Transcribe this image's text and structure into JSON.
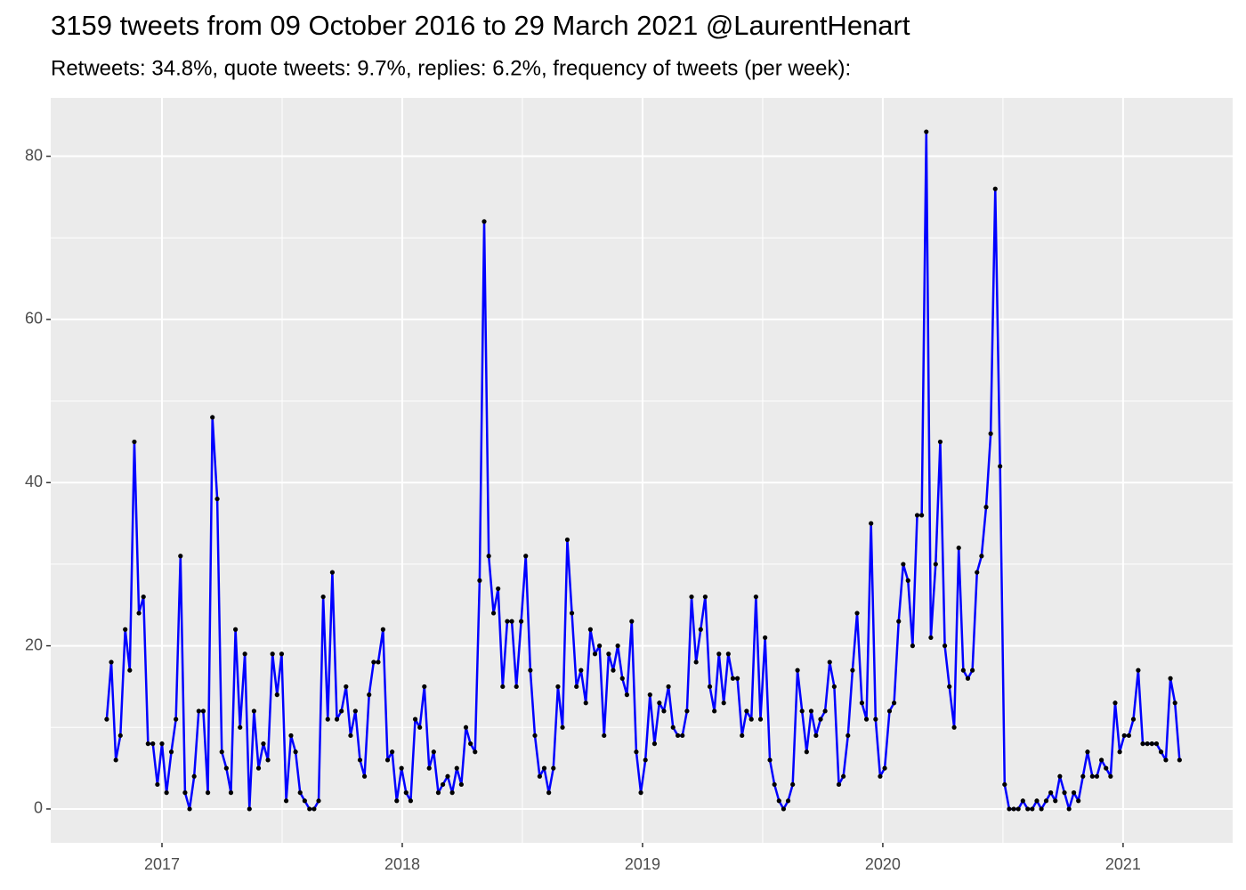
{
  "chart_data": {
    "type": "line",
    "title": "3159 tweets from 09 October 2016 to 29 March 2021 @LaurentHenart",
    "subtitle": "Retweets: 34.8%, quote tweets: 9.7%, replies: 6.2%, frequency of tweets (per week):",
    "x": [
      2016.77,
      2016.789,
      2016.808,
      2016.827,
      2016.847,
      2016.866,
      2016.885,
      2016.904,
      2016.923,
      2016.942,
      2016.962,
      2016.981,
      2017.0,
      2017.019,
      2017.039,
      2017.058,
      2017.077,
      2017.096,
      2017.115,
      2017.134,
      2017.153,
      2017.172,
      2017.191,
      2017.21,
      2017.23,
      2017.249,
      2017.268,
      2017.287,
      2017.306,
      2017.325,
      2017.345,
      2017.364,
      2017.383,
      2017.402,
      2017.422,
      2017.441,
      2017.46,
      2017.479,
      2017.498,
      2017.517,
      2017.537,
      2017.556,
      2017.575,
      2017.594,
      2017.614,
      2017.633,
      2017.652,
      2017.671,
      2017.69,
      2017.709,
      2017.728,
      2017.747,
      2017.766,
      2017.785,
      2017.805,
      2017.824,
      2017.843,
      2017.862,
      2017.881,
      2017.9,
      2017.92,
      2017.939,
      2017.958,
      2017.977,
      2017.997,
      2018.016,
      2018.035,
      2018.054,
      2018.073,
      2018.092,
      2018.112,
      2018.131,
      2018.15,
      2018.169,
      2018.189,
      2018.208,
      2018.227,
      2018.246,
      2018.265,
      2018.284,
      2018.303,
      2018.322,
      2018.341,
      2018.36,
      2018.38,
      2018.399,
      2018.418,
      2018.437,
      2018.456,
      2018.475,
      2018.495,
      2018.514,
      2018.533,
      2018.552,
      2018.572,
      2018.591,
      2018.61,
      2018.629,
      2018.648,
      2018.667,
      2018.687,
      2018.706,
      2018.725,
      2018.744,
      2018.764,
      2018.783,
      2018.802,
      2018.821,
      2018.84,
      2018.859,
      2018.878,
      2018.897,
      2018.916,
      2018.935,
      2018.955,
      2018.974,
      2018.993,
      2019.012,
      2019.031,
      2019.05,
      2019.07,
      2019.089,
      2019.108,
      2019.127,
      2019.147,
      2019.166,
      2019.185,
      2019.204,
      2019.223,
      2019.242,
      2019.261,
      2019.28,
      2019.299,
      2019.318,
      2019.338,
      2019.357,
      2019.376,
      2019.395,
      2019.414,
      2019.433,
      2019.453,
      2019.472,
      2019.491,
      2019.51,
      2019.53,
      2019.549,
      2019.568,
      2019.587,
      2019.606,
      2019.625,
      2019.645,
      2019.664,
      2019.683,
      2019.702,
      2019.722,
      2019.741,
      2019.76,
      2019.779,
      2019.798,
      2019.817,
      2019.836,
      2019.855,
      2019.874,
      2019.893,
      2019.913,
      2019.932,
      2019.951,
      2019.97,
      2019.989,
      2020.008,
      2020.028,
      2020.047,
      2020.066,
      2020.085,
      2020.105,
      2020.124,
      2020.143,
      2020.162,
      2020.181,
      2020.2,
      2020.22,
      2020.239,
      2020.258,
      2020.277,
      2020.297,
      2020.316,
      2020.335,
      2020.354,
      2020.373,
      2020.392,
      2020.411,
      2020.43,
      2020.449,
      2020.468,
      2020.488,
      2020.507,
      2020.526,
      2020.545,
      2020.564,
      2020.583,
      2020.603,
      2020.622,
      2020.641,
      2020.66,
      2020.68,
      2020.699,
      2020.718,
      2020.737,
      2020.756,
      2020.775,
      2020.795,
      2020.814,
      2020.833,
      2020.852,
      2020.872,
      2020.891,
      2020.91,
      2020.929,
      2020.948,
      2020.967,
      2020.986,
      2021.005,
      2021.024,
      2021.043,
      2021.063,
      2021.082,
      2021.101,
      2021.12,
      2021.139,
      2021.158,
      2021.178,
      2021.197,
      2021.216,
      2021.235
    ],
    "series": [
      {
        "color": "#0000ff",
        "values": [
          11,
          18,
          6,
          9,
          22,
          17,
          45,
          24,
          26,
          8,
          8,
          3,
          8,
          2,
          7,
          11,
          31,
          2,
          0,
          4,
          12,
          12,
          2,
          48,
          38,
          7,
          5,
          2,
          22,
          10,
          19,
          0,
          12,
          5,
          8,
          6,
          19,
          14,
          19,
          1,
          9,
          7,
          2,
          1,
          0,
          0,
          1,
          26,
          11,
          29,
          11,
          12,
          15,
          9,
          12,
          6,
          4,
          14,
          18,
          18,
          22,
          6,
          7,
          1,
          5,
          2,
          1,
          11,
          10,
          15,
          5,
          7,
          2,
          3,
          4,
          2,
          5,
          3,
          10,
          8,
          7,
          28,
          72,
          31,
          24,
          27,
          15,
          23,
          23,
          15,
          23,
          31,
          17,
          9,
          4,
          5,
          2,
          5,
          15,
          10,
          33,
          24,
          15,
          17,
          13,
          22,
          19,
          20,
          9,
          19,
          17,
          20,
          16,
          14,
          23,
          7,
          2,
          6,
          14,
          8,
          13,
          12,
          15,
          10,
          9,
          9,
          12,
          26,
          18,
          22,
          26,
          15,
          12,
          19,
          13,
          19,
          16,
          16,
          9,
          12,
          11,
          26,
          11,
          21,
          6,
          3,
          1,
          0,
          1,
          3,
          17,
          12,
          7,
          12,
          9,
          11,
          12,
          18,
          15,
          3,
          4,
          9,
          17,
          24,
          13,
          11,
          35,
          11,
          4,
          5,
          12,
          13,
          23,
          30,
          28,
          20,
          36,
          36,
          83,
          21,
          30,
          45,
          20,
          15,
          10,
          32,
          17,
          16,
          17,
          29,
          31,
          37,
          46,
          76,
          42,
          3,
          0,
          0,
          0,
          1,
          0,
          0,
          1,
          0,
          1,
          2,
          1,
          4,
          2,
          0,
          2,
          1,
          4,
          7,
          4,
          4,
          6,
          5,
          4,
          13,
          7,
          9,
          9,
          11,
          17,
          8,
          8,
          8,
          8,
          7,
          6,
          16,
          13,
          6
        ]
      }
    ],
    "point_color": "#000000",
    "xlim": [
      2016.537,
      2021.456
    ],
    "xticks": [
      2017,
      2018,
      2019,
      2020,
      2021
    ],
    "ylim": [
      -4.15,
      87.15
    ],
    "yticks": [
      0,
      20,
      40,
      60,
      80
    ],
    "grid": true
  }
}
